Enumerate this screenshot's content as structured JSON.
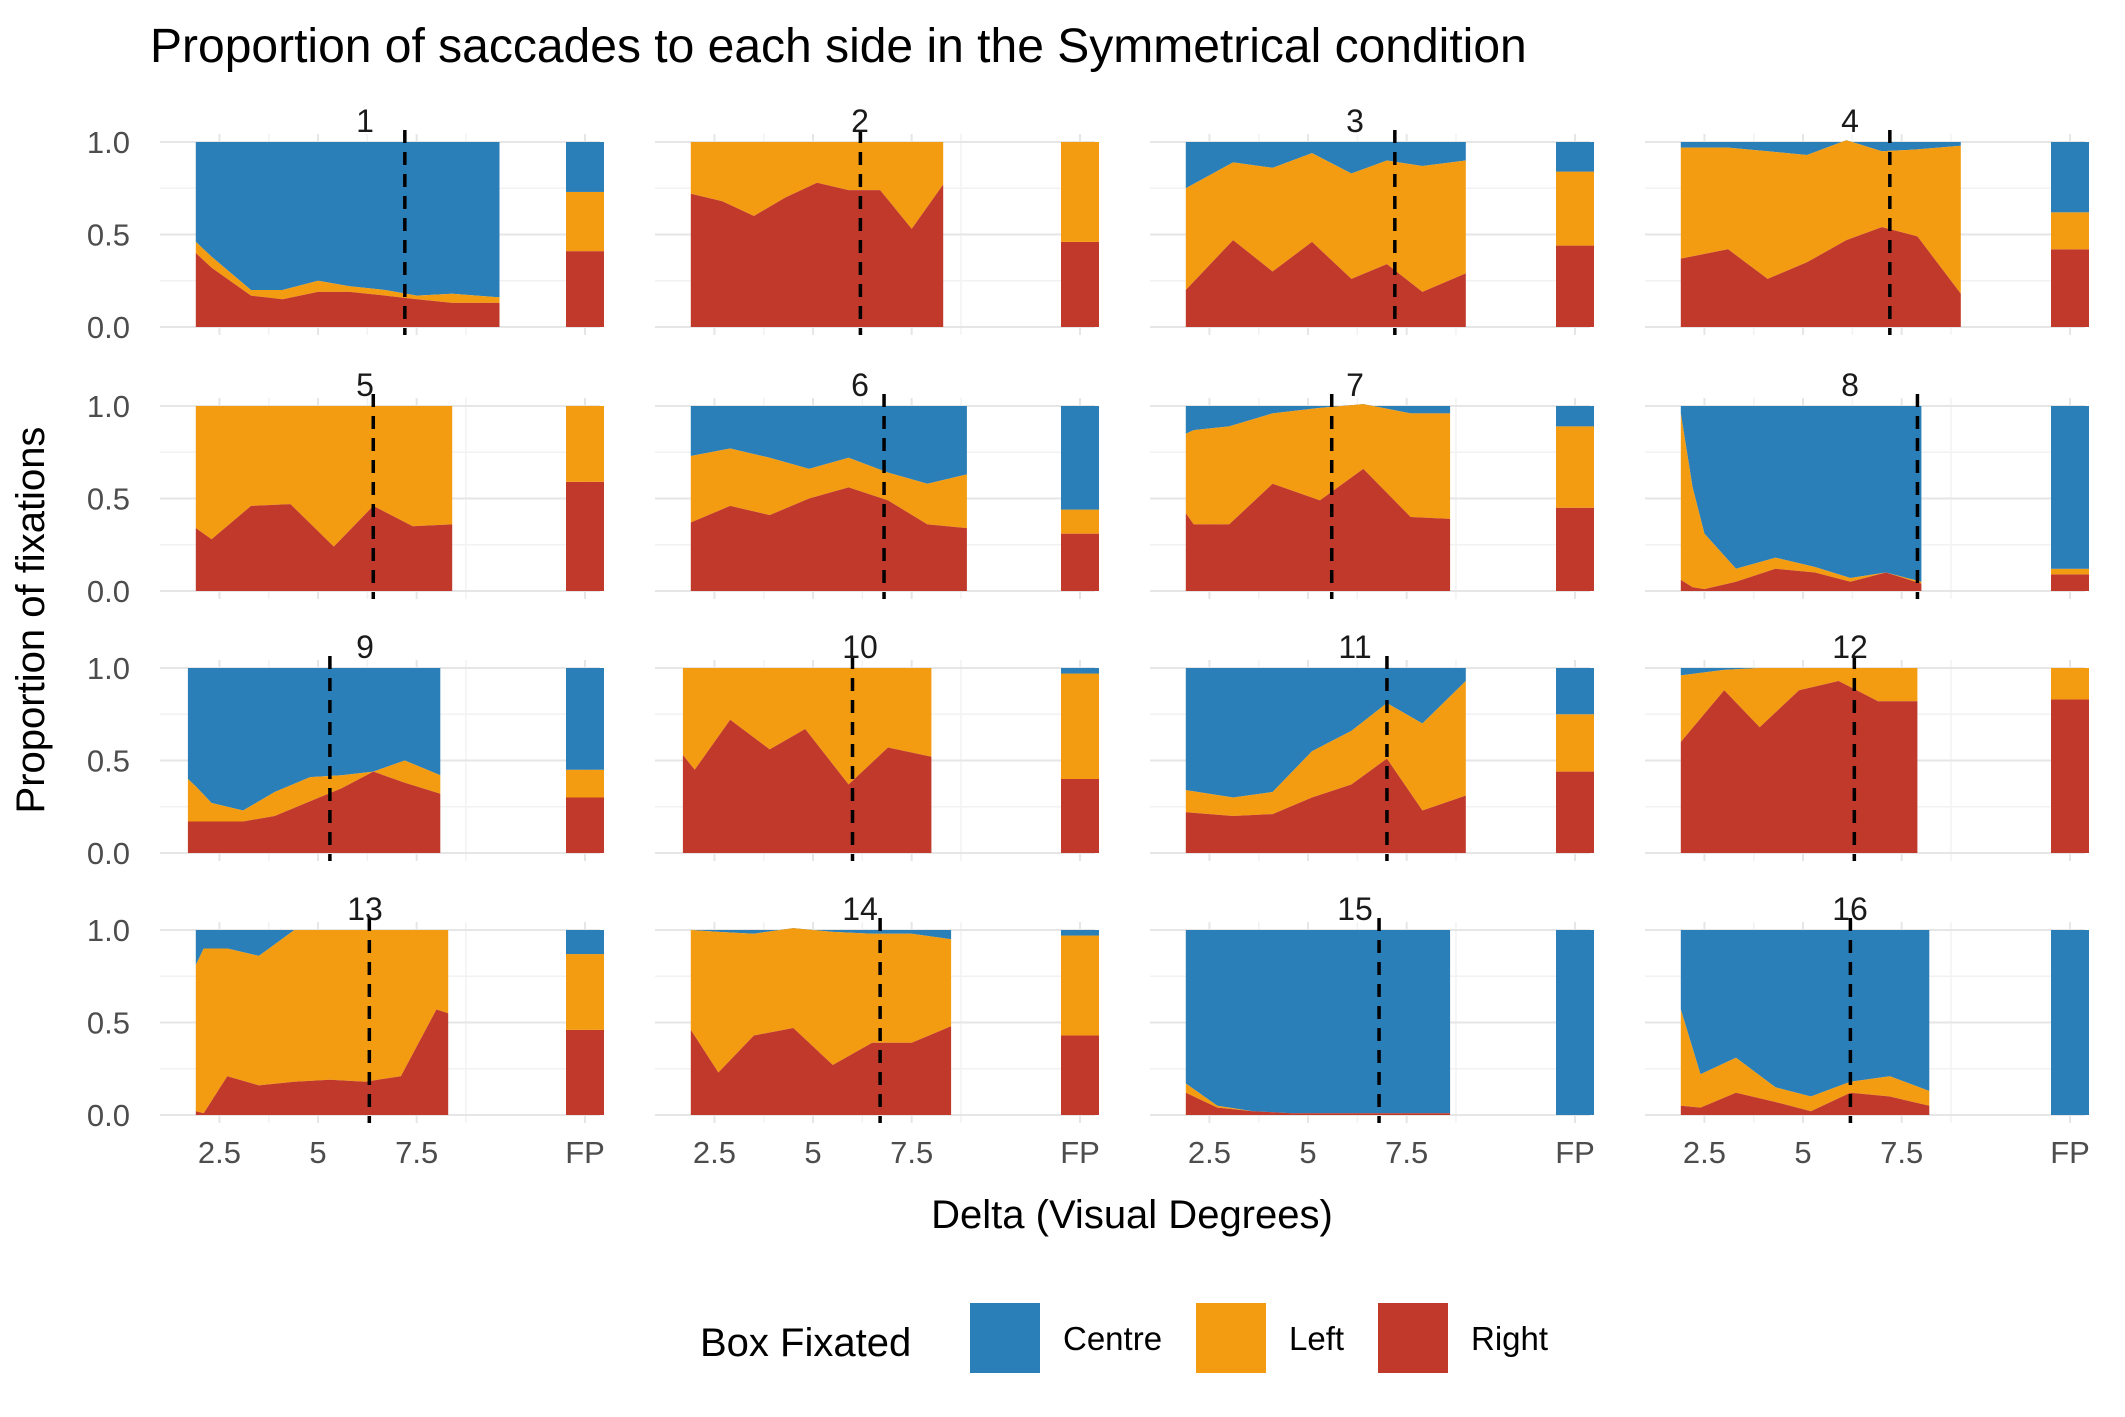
{
  "chart_data": {
    "type": "area",
    "title": "Proportion of saccades to each side in the Symmetrical condition",
    "xlabel": "Delta (Visual Degrees)",
    "ylabel": "Proportion of fixations",
    "ylim": [
      0,
      1
    ],
    "y_ticks": [
      "0.0",
      "0.5",
      "1.0"
    ],
    "x_ticks": [
      "2.5",
      "5",
      "7.5"
    ],
    "fp_tick": "FP",
    "stacked": true,
    "legend": {
      "title": "Box Fixated",
      "position": "bottom",
      "items": [
        {
          "label": "Centre",
          "color": "#2b7fb8"
        },
        {
          "label": "Left",
          "color": "#f39c12"
        },
        {
          "label": "Right",
          "color": "#c0392b"
        }
      ]
    },
    "panels": [
      {
        "label": "1",
        "dashed_x": 7.2,
        "x": [
          1.9,
          2.3,
          3.3,
          4.1,
          5.0,
          5.8,
          6.7,
          7.5,
          8.4,
          9.6
        ],
        "right": [
          0.4,
          0.32,
          0.17,
          0.15,
          0.19,
          0.19,
          0.17,
          0.15,
          0.13,
          0.13
        ],
        "left": [
          0.06,
          0.06,
          0.03,
          0.05,
          0.06,
          0.03,
          0.03,
          0.02,
          0.05,
          0.03
        ],
        "fp": {
          "right": 0.41,
          "left": 0.32,
          "centre": 0.27
        }
      },
      {
        "label": "2",
        "dashed_x": 6.2,
        "x": [
          1.9,
          2.7,
          3.5,
          4.3,
          5.1,
          5.9,
          6.7,
          7.5,
          8.3
        ],
        "right": [
          0.72,
          0.68,
          0.6,
          0.7,
          0.78,
          0.74,
          0.74,
          0.53,
          0.77
        ],
        "left": [
          0.28,
          0.32,
          0.4,
          0.3,
          0.22,
          0.26,
          0.26,
          0.47,
          0.23
        ],
        "fp": {
          "right": 0.46,
          "left": 0.54,
          "centre": 0.0
        }
      },
      {
        "label": "3",
        "dashed_x": 7.2,
        "x": [
          1.9,
          3.1,
          4.1,
          5.1,
          6.1,
          7.0,
          7.9,
          9.0
        ],
        "right": [
          0.2,
          0.47,
          0.3,
          0.46,
          0.26,
          0.34,
          0.19,
          0.29
        ],
        "left": [
          0.55,
          0.42,
          0.56,
          0.48,
          0.57,
          0.56,
          0.68,
          0.61
        ],
        "fp": {
          "right": 0.44,
          "left": 0.4,
          "centre": 0.16
        }
      },
      {
        "label": "4",
        "dashed_x": 7.2,
        "x": [
          1.9,
          3.1,
          4.1,
          5.1,
          6.1,
          7.0,
          7.9,
          9.0
        ],
        "right": [
          0.37,
          0.42,
          0.26,
          0.35,
          0.47,
          0.54,
          0.49,
          0.18
        ],
        "left": [
          0.6,
          0.55,
          0.69,
          0.58,
          0.54,
          0.41,
          0.47,
          0.8
        ],
        "fp": {
          "right": 0.42,
          "left": 0.2,
          "centre": 0.38
        }
      },
      {
        "label": "5",
        "dashed_x": 6.4,
        "x": [
          1.9,
          2.3,
          3.3,
          4.3,
          5.4,
          6.4,
          7.4,
          8.4
        ],
        "right": [
          0.34,
          0.28,
          0.46,
          0.47,
          0.24,
          0.46,
          0.35,
          0.36
        ],
        "left": [
          0.66,
          0.72,
          0.54,
          0.53,
          0.76,
          0.54,
          0.65,
          0.64
        ],
        "fp": {
          "right": 0.59,
          "left": 0.41,
          "centre": 0.0
        }
      },
      {
        "label": "6",
        "dashed_x": 6.8,
        "x": [
          1.9,
          2.9,
          3.9,
          4.9,
          5.9,
          6.9,
          7.9,
          8.9
        ],
        "right": [
          0.37,
          0.46,
          0.41,
          0.5,
          0.56,
          0.49,
          0.36,
          0.34
        ],
        "left": [
          0.36,
          0.31,
          0.31,
          0.16,
          0.16,
          0.15,
          0.22,
          0.29
        ],
        "fp": {
          "right": 0.31,
          "left": 0.13,
          "centre": 0.56
        }
      },
      {
        "label": "7",
        "dashed_x": 5.6,
        "x": [
          1.9,
          2.1,
          3.0,
          4.1,
          5.3,
          6.4,
          7.6,
          8.6
        ],
        "right": [
          0.42,
          0.36,
          0.36,
          0.58,
          0.49,
          0.66,
          0.4,
          0.39
        ],
        "left": [
          0.43,
          0.51,
          0.53,
          0.38,
          0.5,
          0.35,
          0.56,
          0.57
        ],
        "fp": {
          "right": 0.45,
          "left": 0.44,
          "centre": 0.11
        }
      },
      {
        "label": "8",
        "dashed_x": 7.9,
        "x": [
          1.9,
          2.2,
          2.5,
          3.3,
          4.3,
          5.3,
          6.2,
          7.1,
          8.0
        ],
        "right": [
          0.06,
          0.02,
          0.01,
          0.05,
          0.12,
          0.1,
          0.05,
          0.1,
          0.04
        ],
        "left": [
          0.9,
          0.54,
          0.3,
          0.07,
          0.06,
          0.03,
          0.02,
          0.0,
          0.01
        ],
        "fp": {
          "right": 0.09,
          "left": 0.03,
          "centre": 0.88
        }
      },
      {
        "label": "9",
        "dashed_x": 5.3,
        "x": [
          1.7,
          1.9,
          2.3,
          3.1,
          3.9,
          4.8,
          5.6,
          6.4,
          7.2,
          8.1
        ],
        "right": [
          0.17,
          0.17,
          0.17,
          0.17,
          0.2,
          0.28,
          0.35,
          0.44,
          0.38,
          0.32
        ],
        "left": [
          0.23,
          0.19,
          0.1,
          0.06,
          0.13,
          0.13,
          0.07,
          0.0,
          0.12,
          0.1
        ],
        "fp": {
          "right": 0.3,
          "left": 0.15,
          "centre": 0.55
        }
      },
      {
        "label": "10",
        "dashed_x": 6.0,
        "x": [
          1.7,
          2.0,
          2.9,
          3.9,
          4.8,
          5.9,
          6.9,
          8.0
        ],
        "right": [
          0.53,
          0.45,
          0.72,
          0.56,
          0.67,
          0.37,
          0.57,
          0.52
        ],
        "left": [
          0.47,
          0.55,
          0.28,
          0.44,
          0.33,
          0.63,
          0.43,
          0.48
        ],
        "fp": {
          "right": 0.4,
          "left": 0.57,
          "centre": 0.03
        }
      },
      {
        "label": "11",
        "dashed_x": 7.0,
        "x": [
          1.9,
          3.1,
          4.1,
          5.1,
          6.1,
          7.0,
          7.9,
          9.0
        ],
        "right": [
          0.22,
          0.2,
          0.21,
          0.3,
          0.37,
          0.51,
          0.23,
          0.31
        ],
        "left": [
          0.12,
          0.1,
          0.12,
          0.25,
          0.29,
          0.3,
          0.47,
          0.62
        ],
        "fp": {
          "right": 0.44,
          "left": 0.31,
          "centre": 0.25
        }
      },
      {
        "label": "12",
        "dashed_x": 6.3,
        "x": [
          1.9,
          3.0,
          3.9,
          4.9,
          5.9,
          6.9,
          7.9
        ],
        "right": [
          0.6,
          0.88,
          0.68,
          0.88,
          0.93,
          0.82,
          0.82
        ],
        "left": [
          0.36,
          0.11,
          0.32,
          0.12,
          0.07,
          0.18,
          0.18
        ],
        "fp": {
          "right": 0.83,
          "left": 0.17,
          "centre": 0.0
        }
      },
      {
        "label": "13",
        "dashed_x": 6.3,
        "x": [
          1.9,
          2.1,
          2.7,
          3.5,
          4.4,
          5.3,
          6.2,
          7.1,
          8.0,
          8.3
        ],
        "right": [
          0.02,
          0.01,
          0.21,
          0.16,
          0.18,
          0.19,
          0.18,
          0.21,
          0.57,
          0.55
        ],
        "left": [
          0.79,
          0.89,
          0.69,
          0.7,
          0.82,
          0.81,
          0.82,
          0.79,
          0.43,
          0.45
        ],
        "fp": {
          "right": 0.46,
          "left": 0.41,
          "centre": 0.13
        }
      },
      {
        "label": "14",
        "dashed_x": 6.7,
        "x": [
          1.9,
          2.6,
          3.5,
          4.5,
          5.5,
          6.5,
          7.5,
          8.5
        ],
        "right": [
          0.46,
          0.23,
          0.43,
          0.47,
          0.27,
          0.39,
          0.39,
          0.48
        ],
        "left": [
          0.54,
          0.76,
          0.55,
          0.54,
          0.72,
          0.59,
          0.59,
          0.47
        ],
        "fp": {
          "right": 0.43,
          "left": 0.54,
          "centre": 0.03
        }
      },
      {
        "label": "15",
        "dashed_x": 6.8,
        "x": [
          1.9,
          2.7,
          3.6,
          4.6,
          5.6,
          6.6,
          7.6,
          8.6
        ],
        "right": [
          0.12,
          0.04,
          0.02,
          0.01,
          0.01,
          0.01,
          0.01,
          0.01
        ],
        "left": [
          0.05,
          0.01,
          0.0,
          0.0,
          0.0,
          0.0,
          0.0,
          0.0
        ],
        "fp": {
          "right": 0.0,
          "left": 0.0,
          "centre": 1.0
        }
      },
      {
        "label": "16",
        "dashed_x": 6.2,
        "x": [
          1.9,
          2.4,
          3.3,
          4.3,
          5.2,
          6.2,
          7.2,
          8.2
        ],
        "right": [
          0.05,
          0.04,
          0.12,
          0.07,
          0.02,
          0.12,
          0.1,
          0.05
        ],
        "left": [
          0.52,
          0.18,
          0.19,
          0.08,
          0.08,
          0.06,
          0.11,
          0.08
        ],
        "fp": {
          "right": 0.0,
          "left": 0.0,
          "centre": 1.0
        }
      }
    ]
  }
}
